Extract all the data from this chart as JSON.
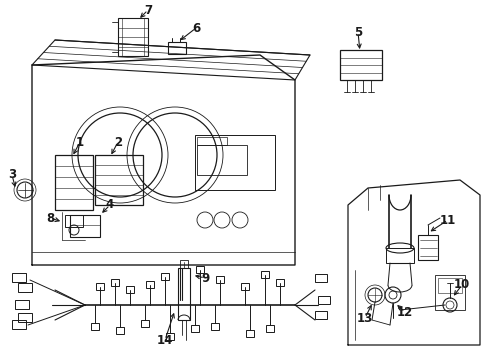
{
  "background_color": "#ffffff",
  "line_color": "#1a1a1a",
  "figsize": [
    4.89,
    3.6
  ],
  "dpi": 100,
  "gray": "#888888",
  "light_gray": "#cccccc"
}
